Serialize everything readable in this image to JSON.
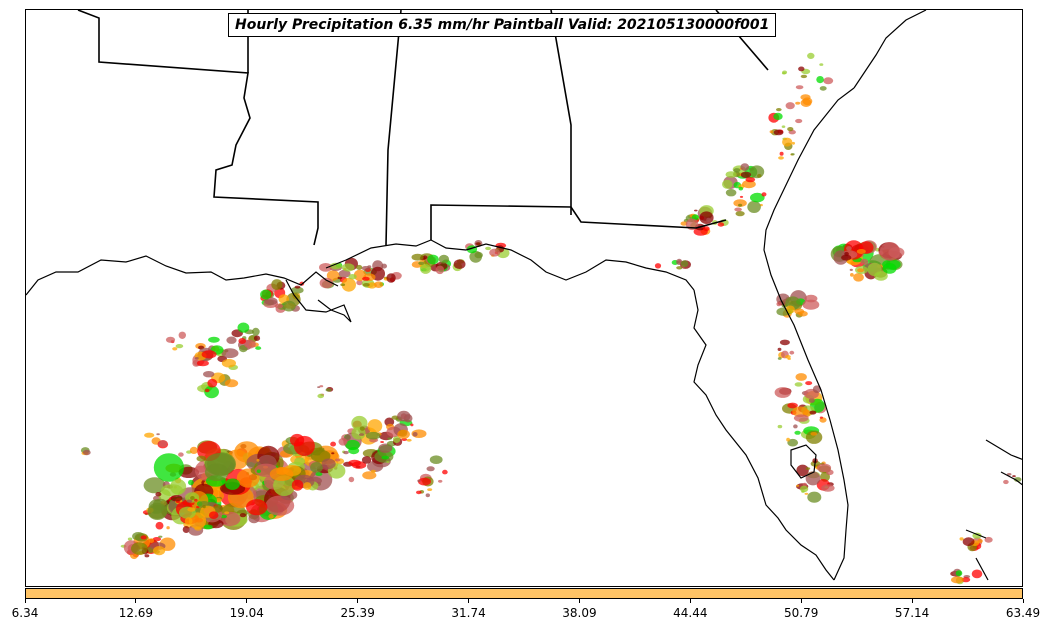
{
  "title": "Hourly Precipitation 6.35 mm/hr Paintball Valid: 202105130000f001",
  "colorbar": {
    "color": "#ffc466",
    "ticks": [
      "6.34",
      "12.69",
      "19.04",
      "25.39",
      "31.74",
      "38.09",
      "44.44",
      "50.79",
      "57.14",
      "63.49"
    ]
  },
  "member_colors": [
    "#ff8c00",
    "#ff0000",
    "#00dd00",
    "#808000",
    "#8b0000",
    "#a05050",
    "#ffa500",
    "#9acd32",
    "#cd5c5c",
    "#6b8e23"
  ]
}
